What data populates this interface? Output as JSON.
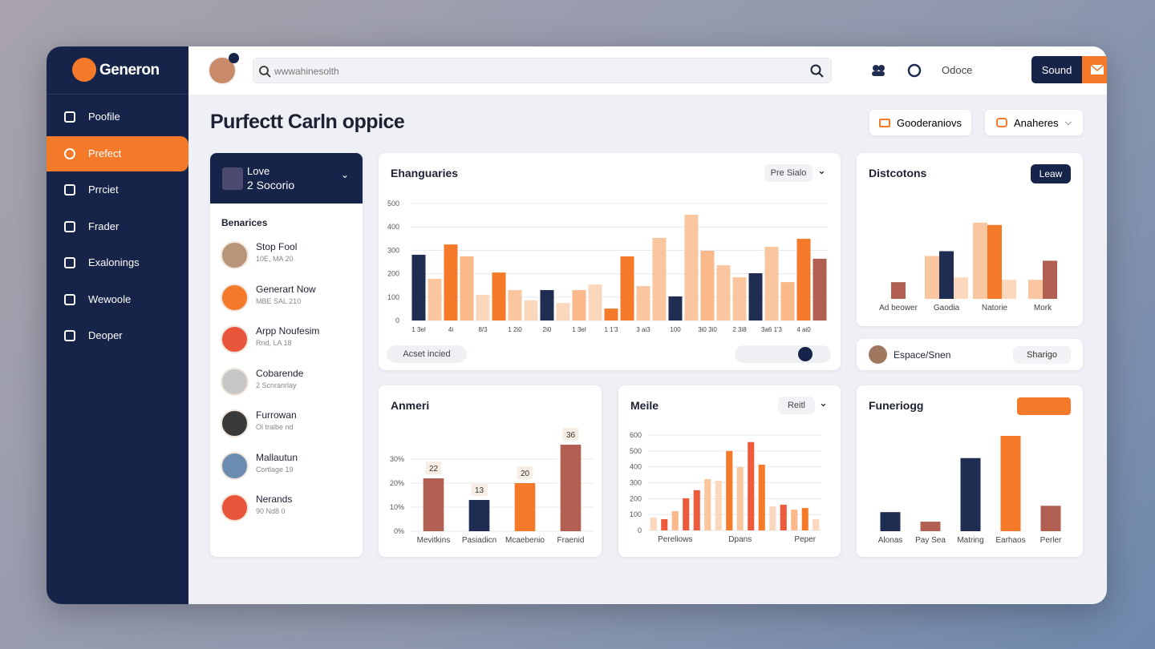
{
  "brand": "Generon",
  "sidebar": {
    "items": [
      "Poofile",
      "Prefect",
      "Prrciet",
      "Frader",
      "Exalonings",
      "Wewoole",
      "Deoper"
    ],
    "active": 1
  },
  "topbar": {
    "search_placeholder": "wwwahinesolth",
    "link": "Odoce",
    "button": "Sound"
  },
  "page_title": "Purfectt Carln oppice",
  "filters": [
    "Gooderaniovs",
    "Anaheres"
  ],
  "profile_card": {
    "title": "Love",
    "subtitle": "2 Socorio",
    "section": "Benarices",
    "people": [
      {
        "name": "Stop Fool",
        "meta": "10E, MA 20"
      },
      {
        "name": "Generart Now",
        "meta": "MBE SAL 210"
      },
      {
        "name": "Arpp Noufesim",
        "meta": "Rnd, LA 18"
      },
      {
        "name": "Cobarende",
        "meta": "2 Scnranrlay"
      },
      {
        "name": "Furrowan",
        "meta": "Ol tralbe nd"
      },
      {
        "name": "Mallautun",
        "meta": "Cortlage 19"
      },
      {
        "name": "Nerands",
        "meta": "90 Nd8 0"
      }
    ]
  },
  "main_chart_footer": {
    "pill": "Acset incied"
  },
  "share_bar": {
    "text": "Espace/Snen",
    "button": "Sharigo"
  },
  "chart_data": [
    {
      "type": "bar",
      "title": "Ehanguaries",
      "dropdown": "Pre Sialo",
      "grid": true,
      "categories": [
        "1 3el",
        null,
        "4i",
        null,
        "8/3",
        null,
        "1 2i0",
        null,
        "2i0",
        null,
        "1 3el",
        null,
        "1 1'3",
        null,
        "3 ai3",
        null,
        "100",
        null,
        "3i0 3i0",
        null,
        "2 3i8",
        null,
        "3a6 1'3",
        null,
        "4 ai0",
        null
      ],
      "values": [
        281,
        178,
        325,
        274,
        110,
        205,
        130,
        86,
        130,
        75,
        130,
        154,
        51,
        274,
        147,
        353,
        103,
        452,
        298,
        236,
        185,
        202,
        315,
        164,
        349,
        264
      ],
      "colors": [
        "#1f2d52",
        "#f9c6a0",
        "#f47a2a",
        "#f9b98a",
        "#fbd7bd",
        "#f47a2a",
        "#f9c6a0",
        "#fbd7bd",
        "#1f2d52",
        "#fbd7bd",
        "#f9b98a",
        "#fbd7bd",
        "#f47a2a",
        "#f47a2a",
        "#f9c6a0",
        "#f9c6a0",
        "#1f2d52",
        "#f9c6a0",
        "#f9b98a",
        "#f9c6a0",
        "#f9c6a0",
        "#1f2d52",
        "#f9c6a0",
        "#f9b98a",
        "#f47a2a",
        "#b05f50"
      ],
      "ylim": [
        0,
        500
      ],
      "yticks": [
        0,
        100,
        200,
        300,
        400,
        500
      ]
    },
    {
      "type": "grouped",
      "title": "Distcotons",
      "button": "Leaw",
      "ylim": [
        0,
        40
      ],
      "groups": [
        {
          "label": "Ad beower",
          "values": [
            7
          ],
          "colors": [
            "#b05f50"
          ]
        },
        {
          "label": "Gaodia",
          "values": [
            18,
            20,
            9
          ],
          "colors": [
            "#f9c6a0",
            "#1f2d52",
            "#fbd7bd"
          ]
        },
        {
          "label": "Natorie",
          "values": [
            32,
            31,
            8
          ],
          "colors": [
            "#f9c6a0",
            "#f47a2a",
            "#fbd7bd"
          ]
        },
        {
          "label": "Mork",
          "values": [
            8,
            16
          ],
          "colors": [
            "#f9c6a0",
            "#b05f50"
          ]
        }
      ]
    },
    {
      "type": "bar",
      "title": "Anmeri",
      "grid": true,
      "categories": [
        "Mevitkins",
        "Pasiadicn",
        "Mcaebenio",
        "Fraenid"
      ],
      "values": [
        22,
        13,
        20,
        36
      ],
      "colors": [
        "#b05f50",
        "#1f2d52",
        "#f47a2a",
        "#b05f50"
      ],
      "show_values": true,
      "ylim": [
        0,
        40
      ],
      "yticks": [
        {
          "value": 0,
          "label": "0%"
        },
        {
          "value": 10,
          "label": "10%"
        },
        {
          "value": 20,
          "label": "20%"
        },
        {
          "value": 30,
          "label": "30%"
        }
      ]
    },
    {
      "type": "bar",
      "title": "Meile",
      "dropdown": "Reitl",
      "grid": true,
      "categories": [
        null,
        null,
        "Pereliows",
        null,
        null,
        null,
        null,
        null,
        "Dpans",
        null,
        null,
        null,
        null,
        null,
        "Peper",
        null
      ],
      "values": [
        81,
        71,
        121,
        202,
        253,
        323,
        313,
        500,
        399,
        556,
        414,
        152,
        162,
        131,
        141,
        71
      ],
      "colors": [
        "#fbd7bd",
        "#ee5a3c",
        "#f9b98a",
        "#ee5a3c",
        "#ee5a3c",
        "#f9c6a0",
        "#fbd7bd",
        "#f47a2a",
        "#f9c6a0",
        "#ee5a3c",
        "#f47a2a",
        "#fbd7bd",
        "#ee5a3c",
        "#f9b98a",
        "#f47a2a",
        "#fbd7bd"
      ],
      "ylim": [
        0,
        600
      ],
      "yticks": [
        0,
        100,
        200,
        300,
        400,
        500,
        600
      ]
    },
    {
      "type": "bar",
      "title": "Funeriogg",
      "categories": [
        "Alonas",
        "Pay Sea",
        "Matring",
        "Earhaos",
        "Perler"
      ],
      "values": [
        6,
        3,
        23,
        30,
        8
      ],
      "colors": [
        "#1f2d52",
        "#b05f50",
        "#1f2d52",
        "#f47a2a",
        "#b05f50"
      ],
      "ylim": [
        0,
        31
      ]
    }
  ]
}
